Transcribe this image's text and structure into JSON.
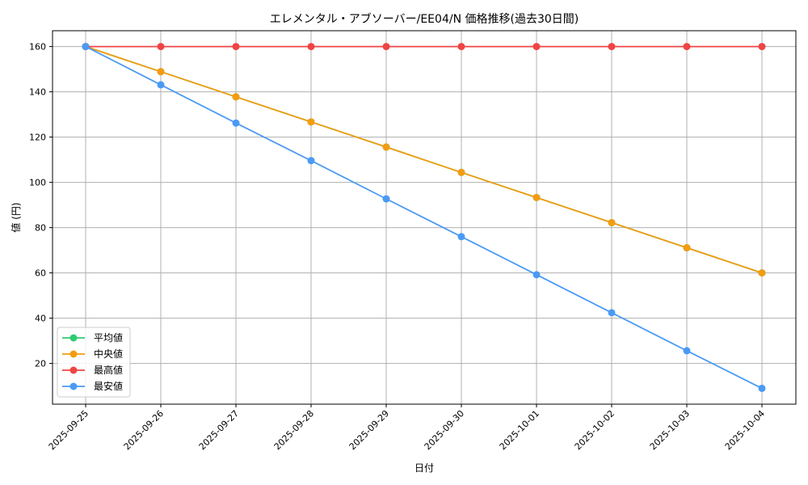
{
  "chart_data": {
    "type": "line",
    "title": "エレメンタル・アブソーバー/EE04/N 価格推移(過去30日間)",
    "xlabel": "日付",
    "ylabel": "値 (円)",
    "categories": [
      "2025-09-25",
      "2025-09-26",
      "2025-09-27",
      "2025-09-28",
      "2025-09-29",
      "2025-09-30",
      "2025-10-01",
      "2025-10-02",
      "2025-10-03",
      "2025-10-04"
    ],
    "ylim": [
      2,
      167
    ],
    "yticks": [
      20,
      40,
      60,
      80,
      100,
      120,
      140,
      160
    ],
    "grid": true,
    "legend_position": "lower-left",
    "series": [
      {
        "name": "平均値",
        "color": "#2ecc71",
        "values": [
          160,
          148.9,
          137.8,
          126.7,
          115.6,
          104.4,
          93.3,
          82.2,
          71.1,
          60
        ]
      },
      {
        "name": "中央値",
        "color": "#f39c12",
        "values": [
          160,
          148.9,
          137.8,
          126.7,
          115.6,
          104.4,
          93.3,
          82.2,
          71.1,
          60
        ]
      },
      {
        "name": "最高値",
        "color": "#ef4444",
        "values": [
          160,
          160,
          160,
          160,
          160,
          160,
          160,
          160,
          160,
          160
        ]
      },
      {
        "name": "最安値",
        "color": "#4a9af5",
        "values": [
          160,
          143.1,
          126.2,
          109.6,
          92.7,
          76.0,
          59.2,
          42.4,
          25.6,
          9.0
        ]
      }
    ]
  }
}
